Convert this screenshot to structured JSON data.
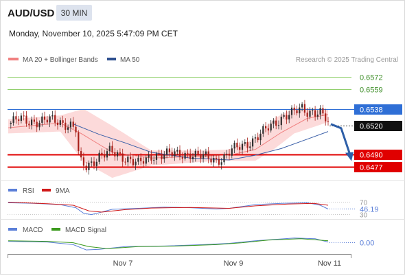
{
  "header": {
    "symbol": "AUD/USD",
    "timeframe": "30 MIN",
    "timestamp": "Monday, November 10, 2025 5:47:09 PM CET"
  },
  "legend": {
    "ma20_label": "MA 20 + Bollinger Bands",
    "ma50_label": "MA 50",
    "copyright": "Research © 2025 Trading Central"
  },
  "colors": {
    "candle_up": "#2f2f2f",
    "candle_down": "#a8201a",
    "ma20": "#f08080",
    "ma50": "#3a5fa8",
    "bollinger_fill": "#fbd4d4",
    "resistance_light": "#8fcf6a",
    "resistance_blue": "#2f6fd6",
    "support_red": "#e00000",
    "rsi": "#5b7fd8",
    "rsi_ma": "#d01818",
    "macd": "#5b7fd8",
    "macd_signal": "#3c9a1e",
    "arrow": "#2e5fa8"
  },
  "chart_data": [
    {
      "type": "candlestick",
      "panel": "price",
      "x_labels": [
        "Nov 7",
        "Nov 9",
        "Nov 11"
      ],
      "ylim": [
        0.6468,
        0.6582
      ],
      "levels": [
        {
          "value": 0.6572,
          "label": "0.6572",
          "style": "resistance-green"
        },
        {
          "value": 0.6559,
          "label": "0.6559",
          "style": "resistance-green"
        },
        {
          "value": 0.6538,
          "label": "0.6538",
          "style": "resistance-blue"
        },
        {
          "value": 0.649,
          "label": "0.6490",
          "style": "support-red"
        },
        {
          "value": 0.6477,
          "label": "0.6477",
          "style": "support-red"
        }
      ],
      "last_price": {
        "value": 0.652,
        "label": "0.6520"
      },
      "price_path": [
        [
          0,
          0.6522
        ],
        [
          8,
          0.6527
        ],
        [
          16,
          0.6525
        ],
        [
          24,
          0.6525
        ],
        [
          32,
          0.6526
        ],
        [
          40,
          0.6524
        ],
        [
          48,
          0.6521
        ],
        [
          52,
          0.6516
        ],
        [
          54,
          0.649
        ],
        [
          56,
          0.648
        ],
        [
          60,
          0.6476
        ],
        [
          64,
          0.6481
        ],
        [
          70,
          0.6489
        ],
        [
          78,
          0.6492
        ],
        [
          86,
          0.6488
        ],
        [
          94,
          0.6485
        ],
        [
          100,
          0.648
        ],
        [
          106,
          0.6483
        ],
        [
          112,
          0.6489
        ],
        [
          120,
          0.6491
        ],
        [
          130,
          0.6489
        ],
        [
          140,
          0.6491
        ],
        [
          150,
          0.6487
        ],
        [
          160,
          0.6484
        ],
        [
          166,
          0.6487
        ],
        [
          172,
          0.6494
        ],
        [
          180,
          0.6499
        ],
        [
          188,
          0.6505
        ],
        [
          196,
          0.6513
        ],
        [
          204,
          0.6522
        ],
        [
          212,
          0.6531
        ],
        [
          220,
          0.6534
        ],
        [
          226,
          0.6538
        ],
        [
          230,
          0.6535
        ],
        [
          234,
          0.6536
        ],
        [
          240,
          0.6534
        ],
        [
          244,
          0.6527
        ],
        [
          246,
          0.6522
        ]
      ],
      "ma20_path": [
        [
          0,
          0.6518
        ],
        [
          40,
          0.6523
        ],
        [
          56,
          0.6512
        ],
        [
          80,
          0.6492
        ],
        [
          110,
          0.6486
        ],
        [
          150,
          0.6488
        ],
        [
          170,
          0.6489
        ],
        [
          190,
          0.6495
        ],
        [
          210,
          0.6513
        ],
        [
          230,
          0.6528
        ],
        [
          246,
          0.6532
        ]
      ],
      "ma50_path": [
        [
          50,
          0.6522
        ],
        [
          70,
          0.6511
        ],
        [
          90,
          0.6502
        ],
        [
          110,
          0.6492
        ],
        [
          140,
          0.6486
        ],
        [
          170,
          0.6484
        ],
        [
          190,
          0.6489
        ],
        [
          210,
          0.6496
        ],
        [
          230,
          0.6506
        ],
        [
          246,
          0.6514
        ]
      ],
      "bollinger_upper": [
        [
          0,
          0.6527
        ],
        [
          40,
          0.6531
        ],
        [
          58,
          0.6538
        ],
        [
          80,
          0.652
        ],
        [
          110,
          0.6494
        ],
        [
          150,
          0.6494
        ],
        [
          170,
          0.6495
        ],
        [
          190,
          0.6507
        ],
        [
          205,
          0.6528
        ],
        [
          220,
          0.6539
        ],
        [
          246,
          0.6538
        ]
      ],
      "bollinger_lower": [
        [
          0,
          0.6512
        ],
        [
          40,
          0.6514
        ],
        [
          58,
          0.6482
        ],
        [
          80,
          0.6465
        ],
        [
          110,
          0.6478
        ],
        [
          150,
          0.6482
        ],
        [
          170,
          0.6483
        ],
        [
          190,
          0.6483
        ],
        [
          205,
          0.6496
        ],
        [
          220,
          0.6512
        ],
        [
          246,
          0.6524
        ]
      ],
      "projection": {
        "from": 0.6519,
        "to": 0.6485
      }
    },
    {
      "type": "line",
      "panel": "rsi",
      "series": [
        {
          "name": "RSI"
        },
        {
          "name": "9MA"
        }
      ],
      "levels": [
        {
          "value": 70,
          "label": "70"
        },
        {
          "value": 30,
          "label": "30"
        }
      ],
      "last_value": {
        "value": 46.19,
        "label": "46.19"
      },
      "ylim": [
        25,
        80
      ],
      "rsi_path": [
        [
          0,
          66
        ],
        [
          20,
          64
        ],
        [
          40,
          60
        ],
        [
          52,
          50
        ],
        [
          58,
          32
        ],
        [
          64,
          28
        ],
        [
          70,
          34
        ],
        [
          80,
          45
        ],
        [
          100,
          48
        ],
        [
          120,
          52
        ],
        [
          140,
          50
        ],
        [
          160,
          46
        ],
        [
          170,
          48
        ],
        [
          190,
          60
        ],
        [
          210,
          64
        ],
        [
          230,
          66
        ],
        [
          240,
          58
        ],
        [
          246,
          46
        ]
      ],
      "rsi_ma_path": [
        [
          0,
          68
        ],
        [
          30,
          63
        ],
        [
          50,
          58
        ],
        [
          62,
          40
        ],
        [
          72,
          36
        ],
        [
          90,
          44
        ],
        [
          110,
          49
        ],
        [
          140,
          51
        ],
        [
          170,
          48
        ],
        [
          190,
          56
        ],
        [
          215,
          62
        ],
        [
          235,
          64
        ],
        [
          246,
          58
        ]
      ]
    },
    {
      "type": "line",
      "panel": "macd",
      "series": [
        {
          "name": "MACD"
        },
        {
          "name": "MACD Signal"
        }
      ],
      "last_value": {
        "value": 0.0,
        "label": "0.00"
      },
      "ylim": [
        -0.0015,
        0.0012
      ],
      "macd_path": [
        [
          0,
          0.0002
        ],
        [
          30,
          0.0001
        ],
        [
          50,
          -0.0003
        ],
        [
          60,
          -0.0011
        ],
        [
          70,
          -0.001
        ],
        [
          90,
          -0.0006
        ],
        [
          120,
          -0.0005
        ],
        [
          150,
          -0.0003
        ],
        [
          170,
          -0.0001
        ],
        [
          190,
          0.0003
        ],
        [
          220,
          0.0007
        ],
        [
          236,
          0.0006
        ],
        [
          246,
          0.0001
        ]
      ],
      "macd_signal_path": [
        [
          0,
          0.0003
        ],
        [
          30,
          0.0002
        ],
        [
          50,
          0.0
        ],
        [
          62,
          -0.0006
        ],
        [
          76,
          -0.0009
        ],
        [
          100,
          -0.0006
        ],
        [
          130,
          -0.0005
        ],
        [
          160,
          -0.0003
        ],
        [
          180,
          0.0
        ],
        [
          200,
          0.0004
        ],
        [
          225,
          0.0006
        ],
        [
          246,
          0.0003
        ]
      ]
    }
  ]
}
